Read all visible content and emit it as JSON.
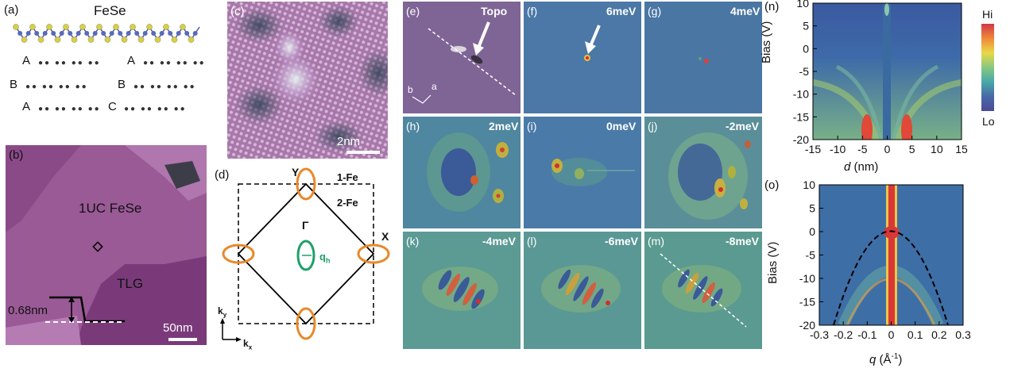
{
  "panel_a": {
    "label": "(a)",
    "title": "FeSe",
    "rows": [
      "A",
      "A",
      "B",
      "B",
      "A",
      "C"
    ]
  },
  "panel_b": {
    "label": "(b)",
    "film": "1UC FeSe",
    "substrate": "TLG",
    "height": "0.68nm",
    "scalebar": "50nm"
  },
  "panel_c": {
    "label": "(c)",
    "scalebar": "2nm"
  },
  "panel_d": {
    "label": "(d)",
    "labels": {
      "Y": "Y",
      "X": "X",
      "Gamma": "Γ",
      "fe1": "1-Fe",
      "fe2": "2-Fe",
      "qh": "q",
      "qh_sub": "h",
      "ky": "k",
      "ky_sub": "y",
      "kx": "k",
      "kx_sub": "x"
    }
  },
  "maps": {
    "e": {
      "label": "(e)",
      "energy": "Topo",
      "a": "a",
      "b": "b"
    },
    "f": {
      "label": "(f)",
      "energy": "6meV"
    },
    "g": {
      "label": "(g)",
      "energy": "4meV"
    },
    "h": {
      "label": "(h)",
      "energy": "2meV"
    },
    "i": {
      "label": "(i)",
      "energy": "0meV"
    },
    "j": {
      "label": "(j)",
      "energy": "-2meV"
    },
    "k": {
      "label": "(k)",
      "energy": "-4meV"
    },
    "l": {
      "label": "(l)",
      "energy": "-6meV"
    },
    "m": {
      "label": "(m)",
      "energy": "-8meV"
    }
  },
  "panel_n": {
    "label": "(n)",
    "ylabel": "Bias (V)",
    "xlabel_italic": "d",
    "xlabel_unit": " (nm)",
    "yticks": [
      "10",
      "5",
      "0",
      "-5",
      "-10",
      "-15",
      "-20"
    ],
    "xticks": [
      "-15",
      "-10",
      "-5",
      "0",
      "5",
      "10",
      "15"
    ],
    "cb_hi": "Hi",
    "cb_lo": "Lo"
  },
  "panel_o": {
    "label": "(o)",
    "ylabel": "Bias (V)",
    "xlabel_italic": "q",
    "xlabel_unit": " (Å",
    "xlabel_sup": "-1",
    "xlabel_end": ")",
    "yticks": [
      "10",
      "5",
      "0",
      "-5",
      "-10",
      "-15",
      "-20"
    ],
    "xticks": [
      "-0.3",
      "-0.2",
      "-0.1",
      "0",
      "0.1",
      "0.2",
      "0.3"
    ]
  },
  "colors": {
    "map_bg": "#4b78a6",
    "topo_bg": "#8a6a9a",
    "orange": "#e8892a",
    "green": "#1fa06a",
    "film": "#9a5a96",
    "substrate": "#7a3a7a"
  }
}
